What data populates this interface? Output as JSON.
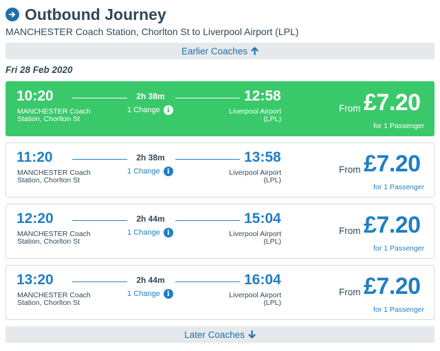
{
  "header": {
    "title": "Outbound Journey",
    "route": "MANCHESTER Coach Station, Chorlton St to Liverpool Airport (LPL)"
  },
  "earlier_label": "Earlier Coaches",
  "later_label": "Later Coaches",
  "date": "Fri 28 Feb 2020",
  "colors": {
    "accent": "#1f7fc4",
    "selected": "#3ac96a",
    "bar_bg": "#e6e9ec",
    "text": "#2f4858"
  },
  "journeys": [
    {
      "dep_time": "10:20",
      "dep_place": "MANCHESTER Coach Station, Chorlton St",
      "duration": "2h 38m",
      "changes": "1 Change",
      "arr_time": "12:58",
      "arr_place": "Liverpool Airport (LPL)",
      "from": "From",
      "price": "£7.20",
      "pax": "for 1 Passenger",
      "selected": true
    },
    {
      "dep_time": "11:20",
      "dep_place": "MANCHESTER Coach Station, Chorlton St",
      "duration": "2h 38m",
      "changes": "1 Change",
      "arr_time": "13:58",
      "arr_place": "Liverpool Airport (LPL)",
      "from": "From",
      "price": "£7.20",
      "pax": "for 1 Passenger",
      "selected": false
    },
    {
      "dep_time": "12:20",
      "dep_place": "MANCHESTER Coach Station, Chorlton St",
      "duration": "2h 44m",
      "changes": "1 Change",
      "arr_time": "15:04",
      "arr_place": "Liverpool Airport (LPL)",
      "from": "From",
      "price": "£7.20",
      "pax": "for 1 Passenger",
      "selected": false
    },
    {
      "dep_time": "13:20",
      "dep_place": "MANCHESTER Coach Station, Chorlton St",
      "duration": "2h 44m",
      "changes": "1 Change",
      "arr_time": "16:04",
      "arr_place": "Liverpool Airport (LPL)",
      "from": "From",
      "price": "£7.20",
      "pax": "for 1 Passenger",
      "selected": false
    }
  ]
}
